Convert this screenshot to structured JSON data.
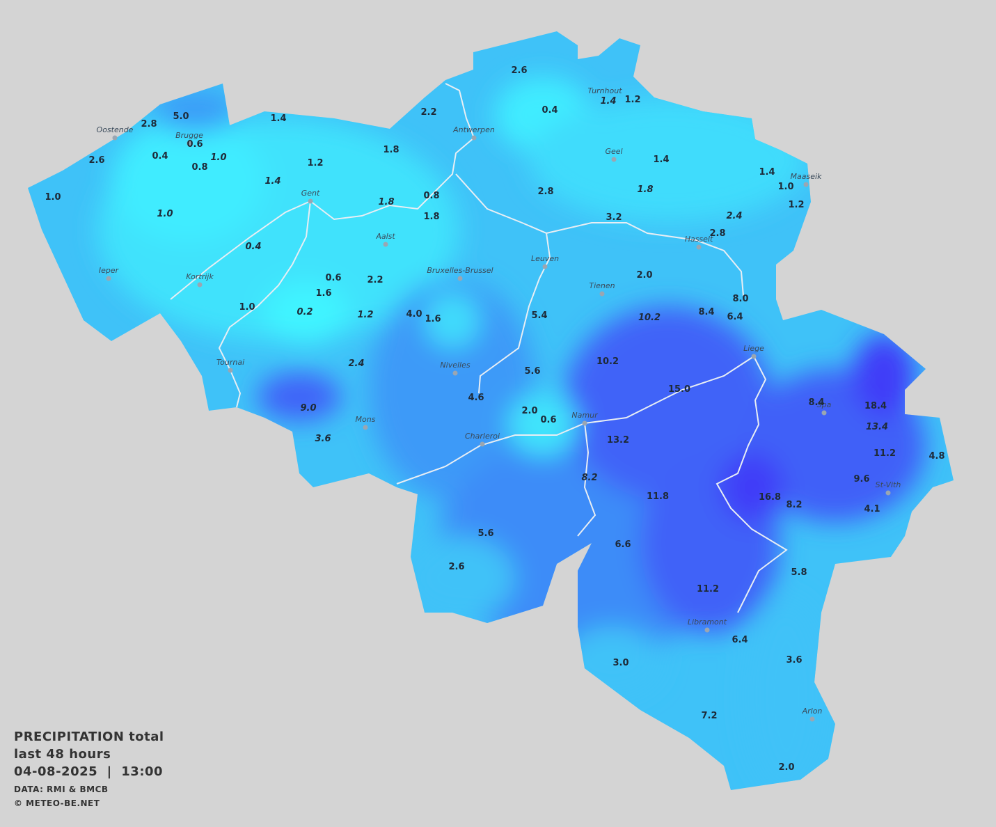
{
  "legend": {
    "title": "PRECIPITATION total",
    "period": "last 48 hours",
    "datetime": "04-08-2025  |  13:00",
    "source": "DATA: RMI & BMCB",
    "copyright": "© METEO-BE.NET"
  },
  "cities": [
    "Oostende",
    "Brugge",
    "Antwerpen",
    "Turnhout",
    "Geel",
    "Maaseik",
    "Gent",
    "Aalst",
    "Hasselt",
    "Ieper",
    "Leuven",
    "Bruxelles-Brussel",
    "Kortrijk",
    "Tienen",
    "Liege",
    "Tournai",
    "Nivelles",
    "Spa",
    "Mons",
    "Namur",
    "Charleroi",
    "St-Vith",
    "Libramont",
    "Arlon"
  ],
  "values": [
    {
      "text": "2.6",
      "italic": false
    },
    {
      "text": "0.4",
      "italic": false
    },
    {
      "text": "1.4",
      "italic": true
    },
    {
      "text": "1.2",
      "italic": false
    },
    {
      "text": "2.2",
      "italic": false
    },
    {
      "text": "5.0",
      "italic": false
    },
    {
      "text": "2.8",
      "italic": false
    },
    {
      "text": "1.4",
      "italic": false
    },
    {
      "text": "0.6",
      "italic": false
    },
    {
      "text": "0.4",
      "italic": false
    },
    {
      "text": "1.0",
      "italic": true
    },
    {
      "text": "0.8",
      "italic": false
    },
    {
      "text": "1.8",
      "italic": false
    },
    {
      "text": "1.2",
      "italic": false
    },
    {
      "text": "2.6",
      "italic": false
    },
    {
      "text": "1.4",
      "italic": false
    },
    {
      "text": "1.4",
      "italic": false
    },
    {
      "text": "1.0",
      "italic": false
    },
    {
      "text": "1.4",
      "italic": true
    },
    {
      "text": "0.8",
      "italic": false
    },
    {
      "text": "2.8",
      "italic": false
    },
    {
      "text": "1.8",
      "italic": true
    },
    {
      "text": "1.0",
      "italic": false
    },
    {
      "text": "1.8",
      "italic": true
    },
    {
      "text": "1.2",
      "italic": false
    },
    {
      "text": "1.0",
      "italic": true
    },
    {
      "text": "1.8",
      "italic": false
    },
    {
      "text": "3.2",
      "italic": false
    },
    {
      "text": "2.4",
      "italic": true
    },
    {
      "text": "2.8",
      "italic": false
    },
    {
      "text": "0.4",
      "italic": true
    },
    {
      "text": "0.6",
      "italic": false
    },
    {
      "text": "2.2",
      "italic": false
    },
    {
      "text": "2.0",
      "italic": false
    },
    {
      "text": "1.6",
      "italic": false
    },
    {
      "text": "8.0",
      "italic": false
    },
    {
      "text": "1.0",
      "italic": false
    },
    {
      "text": "0.2",
      "italic": true
    },
    {
      "text": "1.2",
      "italic": true
    },
    {
      "text": "4.0",
      "italic": false
    },
    {
      "text": "1.6",
      "italic": false
    },
    {
      "text": "5.4",
      "italic": false
    },
    {
      "text": "10.2",
      "italic": true
    },
    {
      "text": "8.4",
      "italic": false
    },
    {
      "text": "6.4",
      "italic": false
    },
    {
      "text": "2.4",
      "italic": true
    },
    {
      "text": "10.2",
      "italic": false
    },
    {
      "text": "5.6",
      "italic": false
    },
    {
      "text": "15.0",
      "italic": false
    },
    {
      "text": "4.6",
      "italic": false
    },
    {
      "text": "8.4",
      "italic": false
    },
    {
      "text": "18.4",
      "italic": false
    },
    {
      "text": "2.0",
      "italic": false
    },
    {
      "text": "0.6",
      "italic": false
    },
    {
      "text": "9.0",
      "italic": true
    },
    {
      "text": "13.4",
      "italic": true
    },
    {
      "text": "3.6",
      "italic": true
    },
    {
      "text": "13.2",
      "italic": false
    },
    {
      "text": "11.2",
      "italic": false
    },
    {
      "text": "4.8",
      "italic": false
    },
    {
      "text": "8.2",
      "italic": true
    },
    {
      "text": "9.6",
      "italic": false
    },
    {
      "text": "11.8",
      "italic": false
    },
    {
      "text": "16.8",
      "italic": false
    },
    {
      "text": "8.2",
      "italic": false
    },
    {
      "text": "4.1",
      "italic": false
    },
    {
      "text": "5.6",
      "italic": false
    },
    {
      "text": "6.6",
      "italic": false
    },
    {
      "text": "2.6",
      "italic": false
    },
    {
      "text": "5.8",
      "italic": false
    },
    {
      "text": "11.2",
      "italic": false
    },
    {
      "text": "6.4",
      "italic": false
    },
    {
      "text": "3.6",
      "italic": false
    },
    {
      "text": "3.0",
      "italic": false
    },
    {
      "text": "7.2",
      "italic": false
    },
    {
      "text": "2.0",
      "italic": false
    }
  ]
}
